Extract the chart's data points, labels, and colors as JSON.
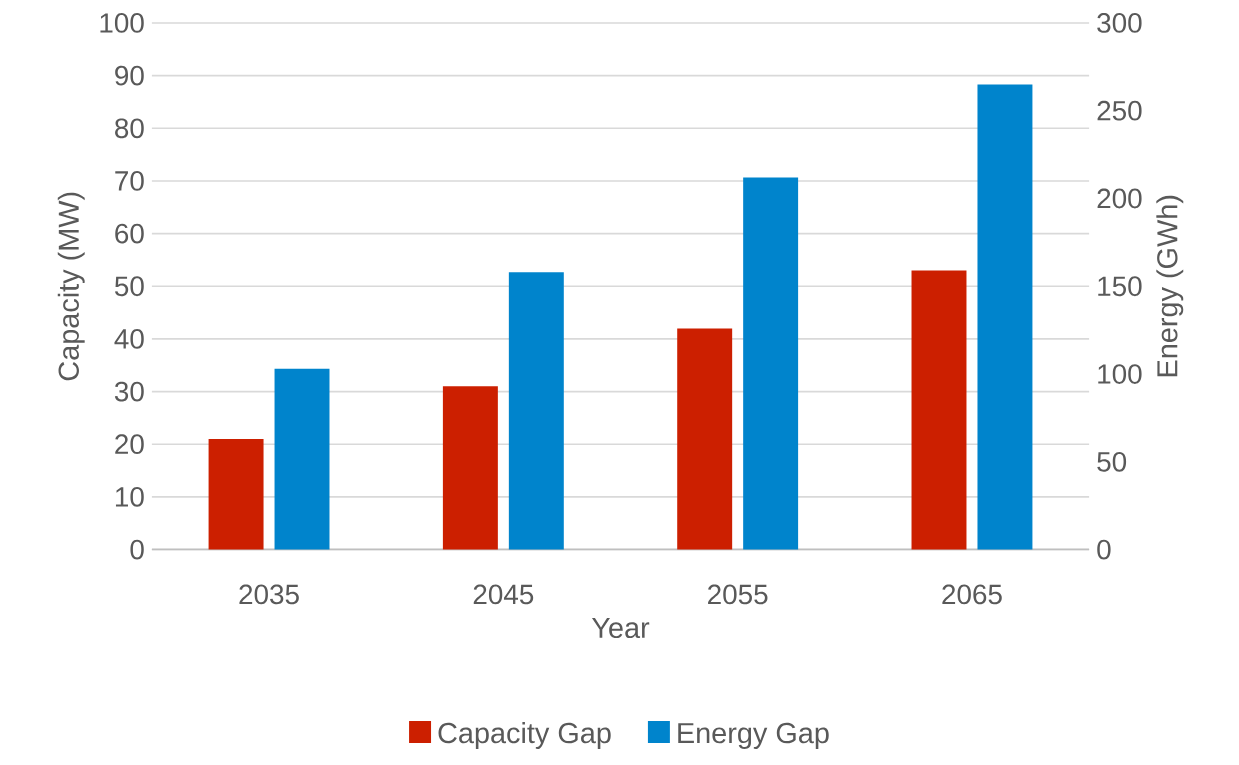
{
  "chart_data": {
    "type": "bar",
    "xlabel": "Year",
    "ylabel": "Capacity (MW)",
    "y2label": "Energy (GWh)",
    "categories": [
      "2035",
      "2045",
      "2055",
      "2065"
    ],
    "series": [
      {
        "name": "Capacity Gap",
        "color": "#cc1f00",
        "values": [
          21,
          31,
          42,
          53
        ]
      },
      {
        "name": "Energy Gap",
        "color": "#0084cc",
        "values": [
          103,
          158,
          212,
          265
        ],
        "axis": "y2"
      }
    ],
    "ylim": [
      0,
      100
    ],
    "yticks": [
      0,
      10,
      20,
      30,
      40,
      50,
      60,
      70,
      80,
      90,
      100
    ],
    "y2lim": [
      0,
      300
    ],
    "y2ticks": [
      0,
      50,
      100,
      150,
      200,
      250,
      300
    ],
    "grid": "y",
    "legend": "bottom"
  }
}
